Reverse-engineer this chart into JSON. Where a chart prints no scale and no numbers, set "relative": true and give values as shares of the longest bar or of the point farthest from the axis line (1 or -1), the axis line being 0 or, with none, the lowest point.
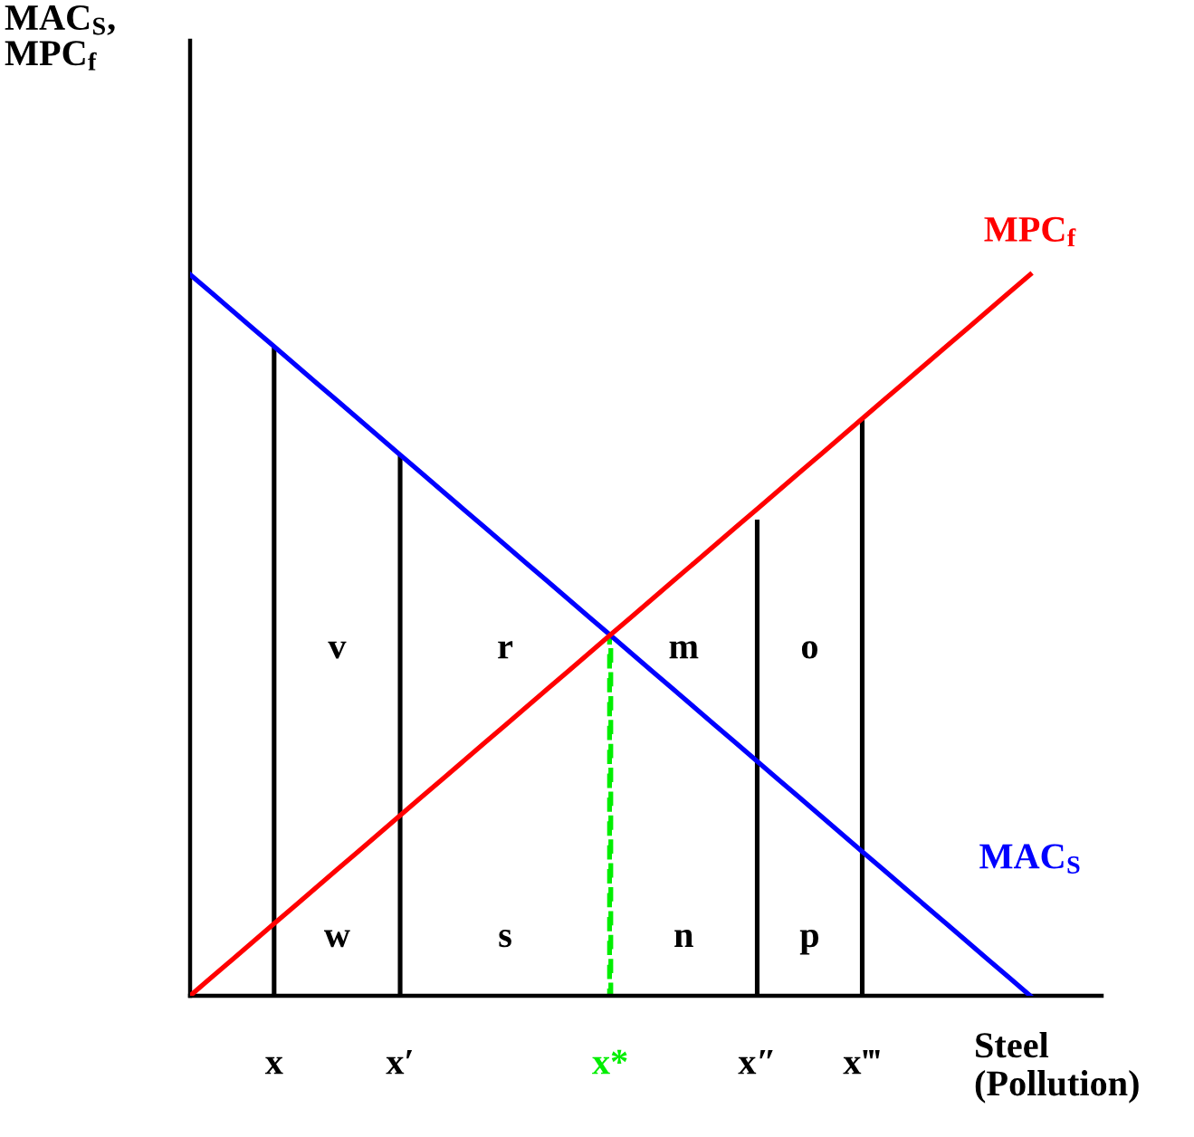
{
  "chart_data": {
    "type": "line",
    "relative": true,
    "xlabel": "Steel\n(Pollution)",
    "categories": [
      null,
      null,
      null,
      null,
      "x",
      null,
      null,
      null,
      null,
      null,
      "x′",
      null,
      null,
      null,
      null,
      null,
      null,
      null,
      null,
      null,
      "x*",
      null,
      null,
      null,
      null,
      null,
      null,
      "x″",
      null,
      null,
      null,
      null,
      "x‴",
      null,
      null,
      null,
      null,
      null,
      null,
      null,
      null,
      null,
      null,
      null
    ],
    "series": [
      {
        "type": "bar",
        "color": "#000000",
        "values": [
          null,
          null,
          null,
          null,
          0.9,
          null,
          null,
          null,
          null,
          null,
          0.75,
          null,
          null,
          null,
          null,
          null,
          null,
          null,
          null,
          null,
          null,
          null,
          null,
          null,
          null,
          null,
          null,
          0.66,
          null,
          null,
          null,
          null,
          0.8,
          null,
          null,
          null,
          null,
          null,
          null,
          null,
          null,
          null,
          null,
          null
        ]
      },
      {
        "name": "MAC$_{S}$",
        "color": "#0000ff",
        "values": [
          1,
          0.975,
          0.95,
          0.925,
          0.9,
          0.875,
          0.85,
          0.825,
          0.8,
          0.775,
          0.75,
          0.725,
          0.7,
          0.675,
          0.65,
          0.625,
          0.6,
          0.575,
          0.55,
          0.525,
          0.5,
          0.475,
          0.45,
          0.425,
          0.4,
          0.375,
          0.35,
          0.325,
          0.3,
          0.275,
          0.25,
          0.225,
          0.2,
          0.175,
          0.15,
          0.125,
          0.1,
          0.075,
          0.05,
          0.025,
          0,
          null,
          null,
          null
        ]
      },
      {
        "name": "MPC$_{f}$",
        "color": "#ff0000",
        "values": [
          0,
          0.025,
          0.05,
          0.075,
          0.1,
          0.125,
          0.15,
          0.175,
          0.2,
          0.225,
          0.25,
          0.275,
          0.3,
          0.325,
          0.35,
          0.375,
          0.4,
          0.425,
          0.45,
          0.475,
          0.5,
          0.525,
          0.55,
          0.575,
          0.6,
          0.625,
          0.65,
          0.675,
          0.7,
          0.725,
          0.75,
          0.775,
          0.8,
          0.825,
          0.85,
          0.875,
          0.9,
          0.925,
          0.95,
          0.975,
          1,
          null,
          null,
          null
        ]
      },
      {
        "type": "bar",
        "color": "#00ee00",
        "line_style": "dashed",
        "values": [
          null,
          null,
          null,
          null,
          null,
          null,
          null,
          null,
          null,
          null,
          null,
          null,
          null,
          null,
          null,
          null,
          null,
          null,
          null,
          null,
          0.5,
          null,
          null,
          null,
          null,
          null,
          null,
          null,
          null,
          null,
          null,
          null,
          null,
          null,
          null,
          null,
          null,
          null,
          null,
          null,
          null,
          null,
          null,
          null
        ]
      }
    ],
    "annotations": [
      "v",
      "r",
      "m",
      "o",
      "w",
      "s",
      "n",
      "p",
      "MAC$_{S}$,\nMPC$_{f}$"
    ]
  }
}
